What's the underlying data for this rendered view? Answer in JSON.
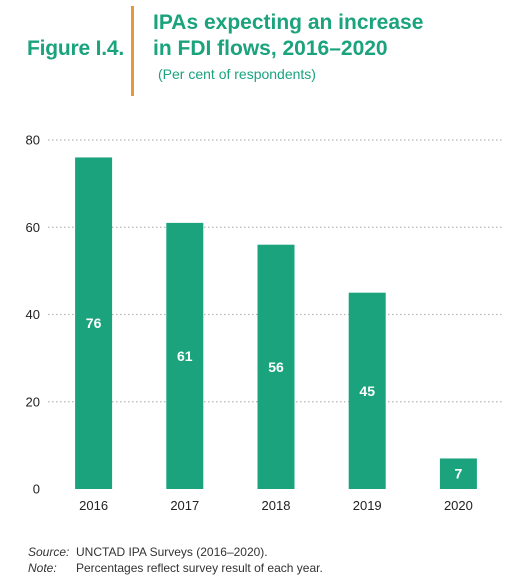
{
  "figure": {
    "label": "Figure I.4.",
    "title_line1": "IPAs expecting an increase",
    "title_line2": "in FDI flows, 2016–2020",
    "subtitle": "(Per cent of respondents)"
  },
  "colors": {
    "accent": "#1aa37c",
    "divider": "#e8963a",
    "bar": "#1aa37c",
    "bar_label": "#ffffff",
    "grid": "#b8b8b8",
    "axis_text": "#222222"
  },
  "chart_data": {
    "type": "bar",
    "categories": [
      "2016",
      "2017",
      "2018",
      "2019",
      "2020"
    ],
    "values": [
      76,
      61,
      56,
      45,
      7
    ],
    "data_labels": [
      "76",
      "61",
      "56",
      "45",
      "7"
    ],
    "ylim": [
      0,
      80
    ],
    "yticks": [
      0,
      20,
      40,
      60,
      80
    ],
    "grid": true,
    "grid_style": "dotted",
    "xlabel": "",
    "ylabel": ""
  },
  "footnotes": {
    "source_key": "Source:",
    "source_text": "UNCTAD IPA Surveys (2016–2020).",
    "note_key": "Note:",
    "note_text": "Percentages reflect survey result of each year."
  }
}
